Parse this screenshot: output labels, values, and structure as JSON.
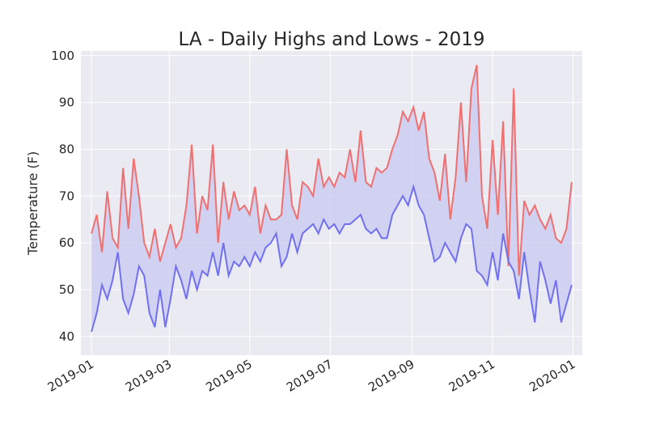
{
  "chart_data": {
    "type": "line",
    "title": "LA - Daily Highs and Lows - 2019",
    "xlabel": "",
    "ylabel": "Temperature (F)",
    "x_range": [
      "2018-12-24",
      "2020-01-08"
    ],
    "ylim": [
      36,
      101
    ],
    "grid": true,
    "y_ticks": [
      40,
      50,
      60,
      70,
      80,
      90,
      100
    ],
    "x_ticks": [
      "2019-01",
      "2019-03",
      "2019-05",
      "2019-07",
      "2019-09",
      "2019-11",
      "2020-01"
    ],
    "fill_between": true,
    "colors": {
      "background": "#eaeaf2",
      "grid": "#ffffff",
      "highs": "#f07070",
      "lows": "#7070f0",
      "fill": "#c8c8f0",
      "text": "#262626"
    },
    "series": [
      {
        "key": "highs",
        "x": [
          "2019-01-01",
          "2019-01-05",
          "2019-01-09",
          "2019-01-13",
          "2019-01-17",
          "2019-01-21",
          "2019-01-25",
          "2019-01-29",
          "2019-02-02",
          "2019-02-06",
          "2019-02-10",
          "2019-02-14",
          "2019-02-18",
          "2019-02-22",
          "2019-02-26",
          "2019-03-02",
          "2019-03-06",
          "2019-03-10",
          "2019-03-14",
          "2019-03-18",
          "2019-03-22",
          "2019-03-26",
          "2019-03-30",
          "2019-04-03",
          "2019-04-07",
          "2019-04-11",
          "2019-04-15",
          "2019-04-19",
          "2019-04-23",
          "2019-04-27",
          "2019-05-01",
          "2019-05-05",
          "2019-05-09",
          "2019-05-13",
          "2019-05-17",
          "2019-05-21",
          "2019-05-25",
          "2019-05-29",
          "2019-06-02",
          "2019-06-06",
          "2019-06-10",
          "2019-06-14",
          "2019-06-18",
          "2019-06-22",
          "2019-06-26",
          "2019-06-30",
          "2019-07-04",
          "2019-07-08",
          "2019-07-12",
          "2019-07-16",
          "2019-07-20",
          "2019-07-24",
          "2019-07-28",
          "2019-08-01",
          "2019-08-05",
          "2019-08-09",
          "2019-08-13",
          "2019-08-17",
          "2019-08-21",
          "2019-08-25",
          "2019-08-29",
          "2019-09-02",
          "2019-09-06",
          "2019-09-10",
          "2019-09-14",
          "2019-09-18",
          "2019-09-22",
          "2019-09-26",
          "2019-09-30",
          "2019-10-04",
          "2019-10-08",
          "2019-10-12",
          "2019-10-16",
          "2019-10-20",
          "2019-10-24",
          "2019-10-28",
          "2019-11-01",
          "2019-11-05",
          "2019-11-09",
          "2019-11-13",
          "2019-11-17",
          "2019-11-21",
          "2019-11-25",
          "2019-11-29",
          "2019-12-03",
          "2019-12-07",
          "2019-12-11",
          "2019-12-15",
          "2019-12-19",
          "2019-12-23",
          "2019-12-27",
          "2019-12-31"
        ],
        "values": [
          62,
          66,
          58,
          71,
          61,
          59,
          76,
          63,
          78,
          70,
          60,
          57,
          63,
          56,
          60,
          64,
          59,
          61,
          68,
          81,
          62,
          70,
          67,
          81,
          60,
          73,
          65,
          71,
          67,
          68,
          66,
          72,
          62,
          68,
          65,
          65,
          66,
          80,
          68,
          65,
          73,
          72,
          70,
          78,
          72,
          74,
          72,
          75,
          74,
          80,
          73,
          84,
          73,
          72,
          76,
          75,
          76,
          80,
          83,
          88,
          86,
          89,
          84,
          88,
          78,
          75,
          69,
          79,
          65,
          74,
          90,
          73,
          93,
          98,
          70,
          63,
          82,
          66,
          86,
          55,
          93,
          53,
          69,
          66,
          68,
          65,
          63,
          66,
          61,
          60,
          63,
          73
        ]
      },
      {
        "key": "lows",
        "x": [
          "2019-01-01",
          "2019-01-05",
          "2019-01-09",
          "2019-01-13",
          "2019-01-17",
          "2019-01-21",
          "2019-01-25",
          "2019-01-29",
          "2019-02-02",
          "2019-02-06",
          "2019-02-10",
          "2019-02-14",
          "2019-02-18",
          "2019-02-22",
          "2019-02-26",
          "2019-03-02",
          "2019-03-06",
          "2019-03-10",
          "2019-03-14",
          "2019-03-18",
          "2019-03-22",
          "2019-03-26",
          "2019-03-30",
          "2019-04-03",
          "2019-04-07",
          "2019-04-11",
          "2019-04-15",
          "2019-04-19",
          "2019-04-23",
          "2019-04-27",
          "2019-05-01",
          "2019-05-05",
          "2019-05-09",
          "2019-05-13",
          "2019-05-17",
          "2019-05-21",
          "2019-05-25",
          "2019-05-29",
          "2019-06-02",
          "2019-06-06",
          "2019-06-10",
          "2019-06-14",
          "2019-06-18",
          "2019-06-22",
          "2019-06-26",
          "2019-06-30",
          "2019-07-04",
          "2019-07-08",
          "2019-07-12",
          "2019-07-16",
          "2019-07-20",
          "2019-07-24",
          "2019-07-28",
          "2019-08-01",
          "2019-08-05",
          "2019-08-09",
          "2019-08-13",
          "2019-08-17",
          "2019-08-21",
          "2019-08-25",
          "2019-08-29",
          "2019-09-02",
          "2019-09-06",
          "2019-09-10",
          "2019-09-14",
          "2019-09-18",
          "2019-09-22",
          "2019-09-26",
          "2019-09-30",
          "2019-10-04",
          "2019-10-08",
          "2019-10-12",
          "2019-10-16",
          "2019-10-20",
          "2019-10-24",
          "2019-10-28",
          "2019-11-01",
          "2019-11-05",
          "2019-11-09",
          "2019-11-13",
          "2019-11-17",
          "2019-11-21",
          "2019-11-25",
          "2019-11-29",
          "2019-12-03",
          "2019-12-07",
          "2019-12-11",
          "2019-12-15",
          "2019-12-19",
          "2019-12-23",
          "2019-12-27",
          "2019-12-31"
        ],
        "values": [
          41,
          45,
          51,
          48,
          52,
          58,
          48,
          45,
          49,
          55,
          53,
          45,
          42,
          50,
          42,
          48,
          55,
          52,
          48,
          54,
          50,
          54,
          53,
          58,
          53,
          60,
          53,
          56,
          55,
          57,
          55,
          58,
          56,
          59,
          60,
          62,
          55,
          57,
          62,
          58,
          62,
          63,
          64,
          62,
          65,
          63,
          64,
          62,
          64,
          64,
          65,
          66,
          63,
          62,
          63,
          61,
          61,
          66,
          68,
          70,
          68,
          72,
          68,
          66,
          61,
          56,
          57,
          60,
          58,
          56,
          61,
          64,
          63,
          54,
          53,
          51,
          58,
          52,
          62,
          56,
          54,
          48,
          58,
          50,
          43,
          56,
          52,
          47,
          52,
          43,
          47,
          51
        ]
      }
    ]
  }
}
